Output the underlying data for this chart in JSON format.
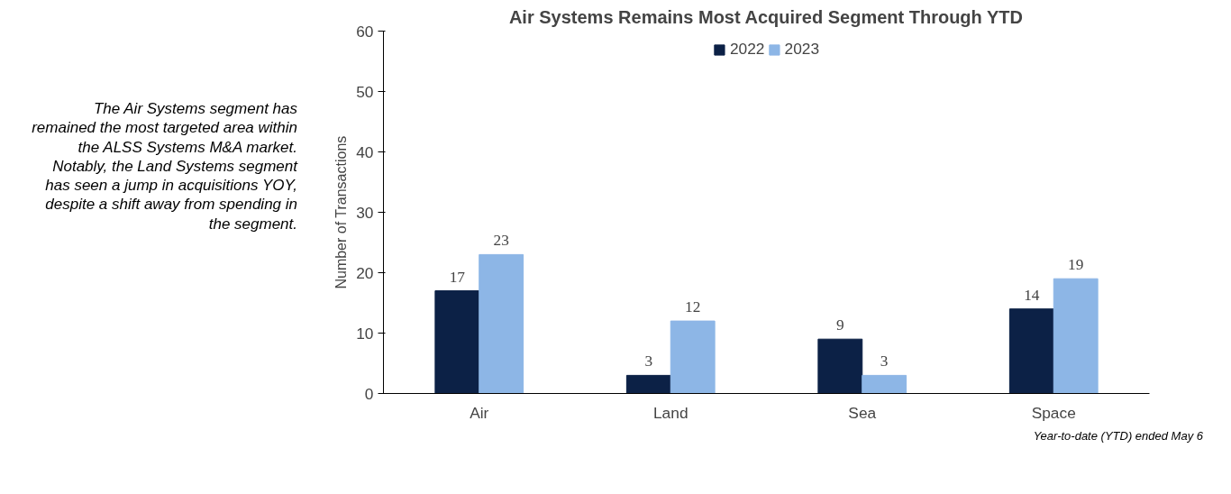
{
  "chart_data": {
    "type": "bar",
    "title": "Air Systems Remains Most Acquired Segment Through YTD",
    "ylabel": "Number of Transactions",
    "categories": [
      "Air",
      "Land",
      "Sea",
      "Space"
    ],
    "series": [
      {
        "name": "2022",
        "color": "#0c2146",
        "values": [
          17,
          3,
          9,
          14
        ]
      },
      {
        "name": "2023",
        "color": "#8db6e6",
        "values": [
          23,
          12,
          3,
          19
        ]
      }
    ],
    "ylim": [
      0,
      60
    ],
    "yticks": [
      0,
      10,
      20,
      30,
      40,
      50,
      60
    ],
    "grid": false,
    "legend": "top",
    "data_labels": true,
    "annotations": [
      "The Air Systems segment has remained the most targeted area within the ALSS Systems M&A market. Notably, the Land Systems segment has seen a jump in acquisitions YOY, despite a shift away from spending in the segment.",
      "Year-to-date (YTD) ended May 6"
    ]
  }
}
